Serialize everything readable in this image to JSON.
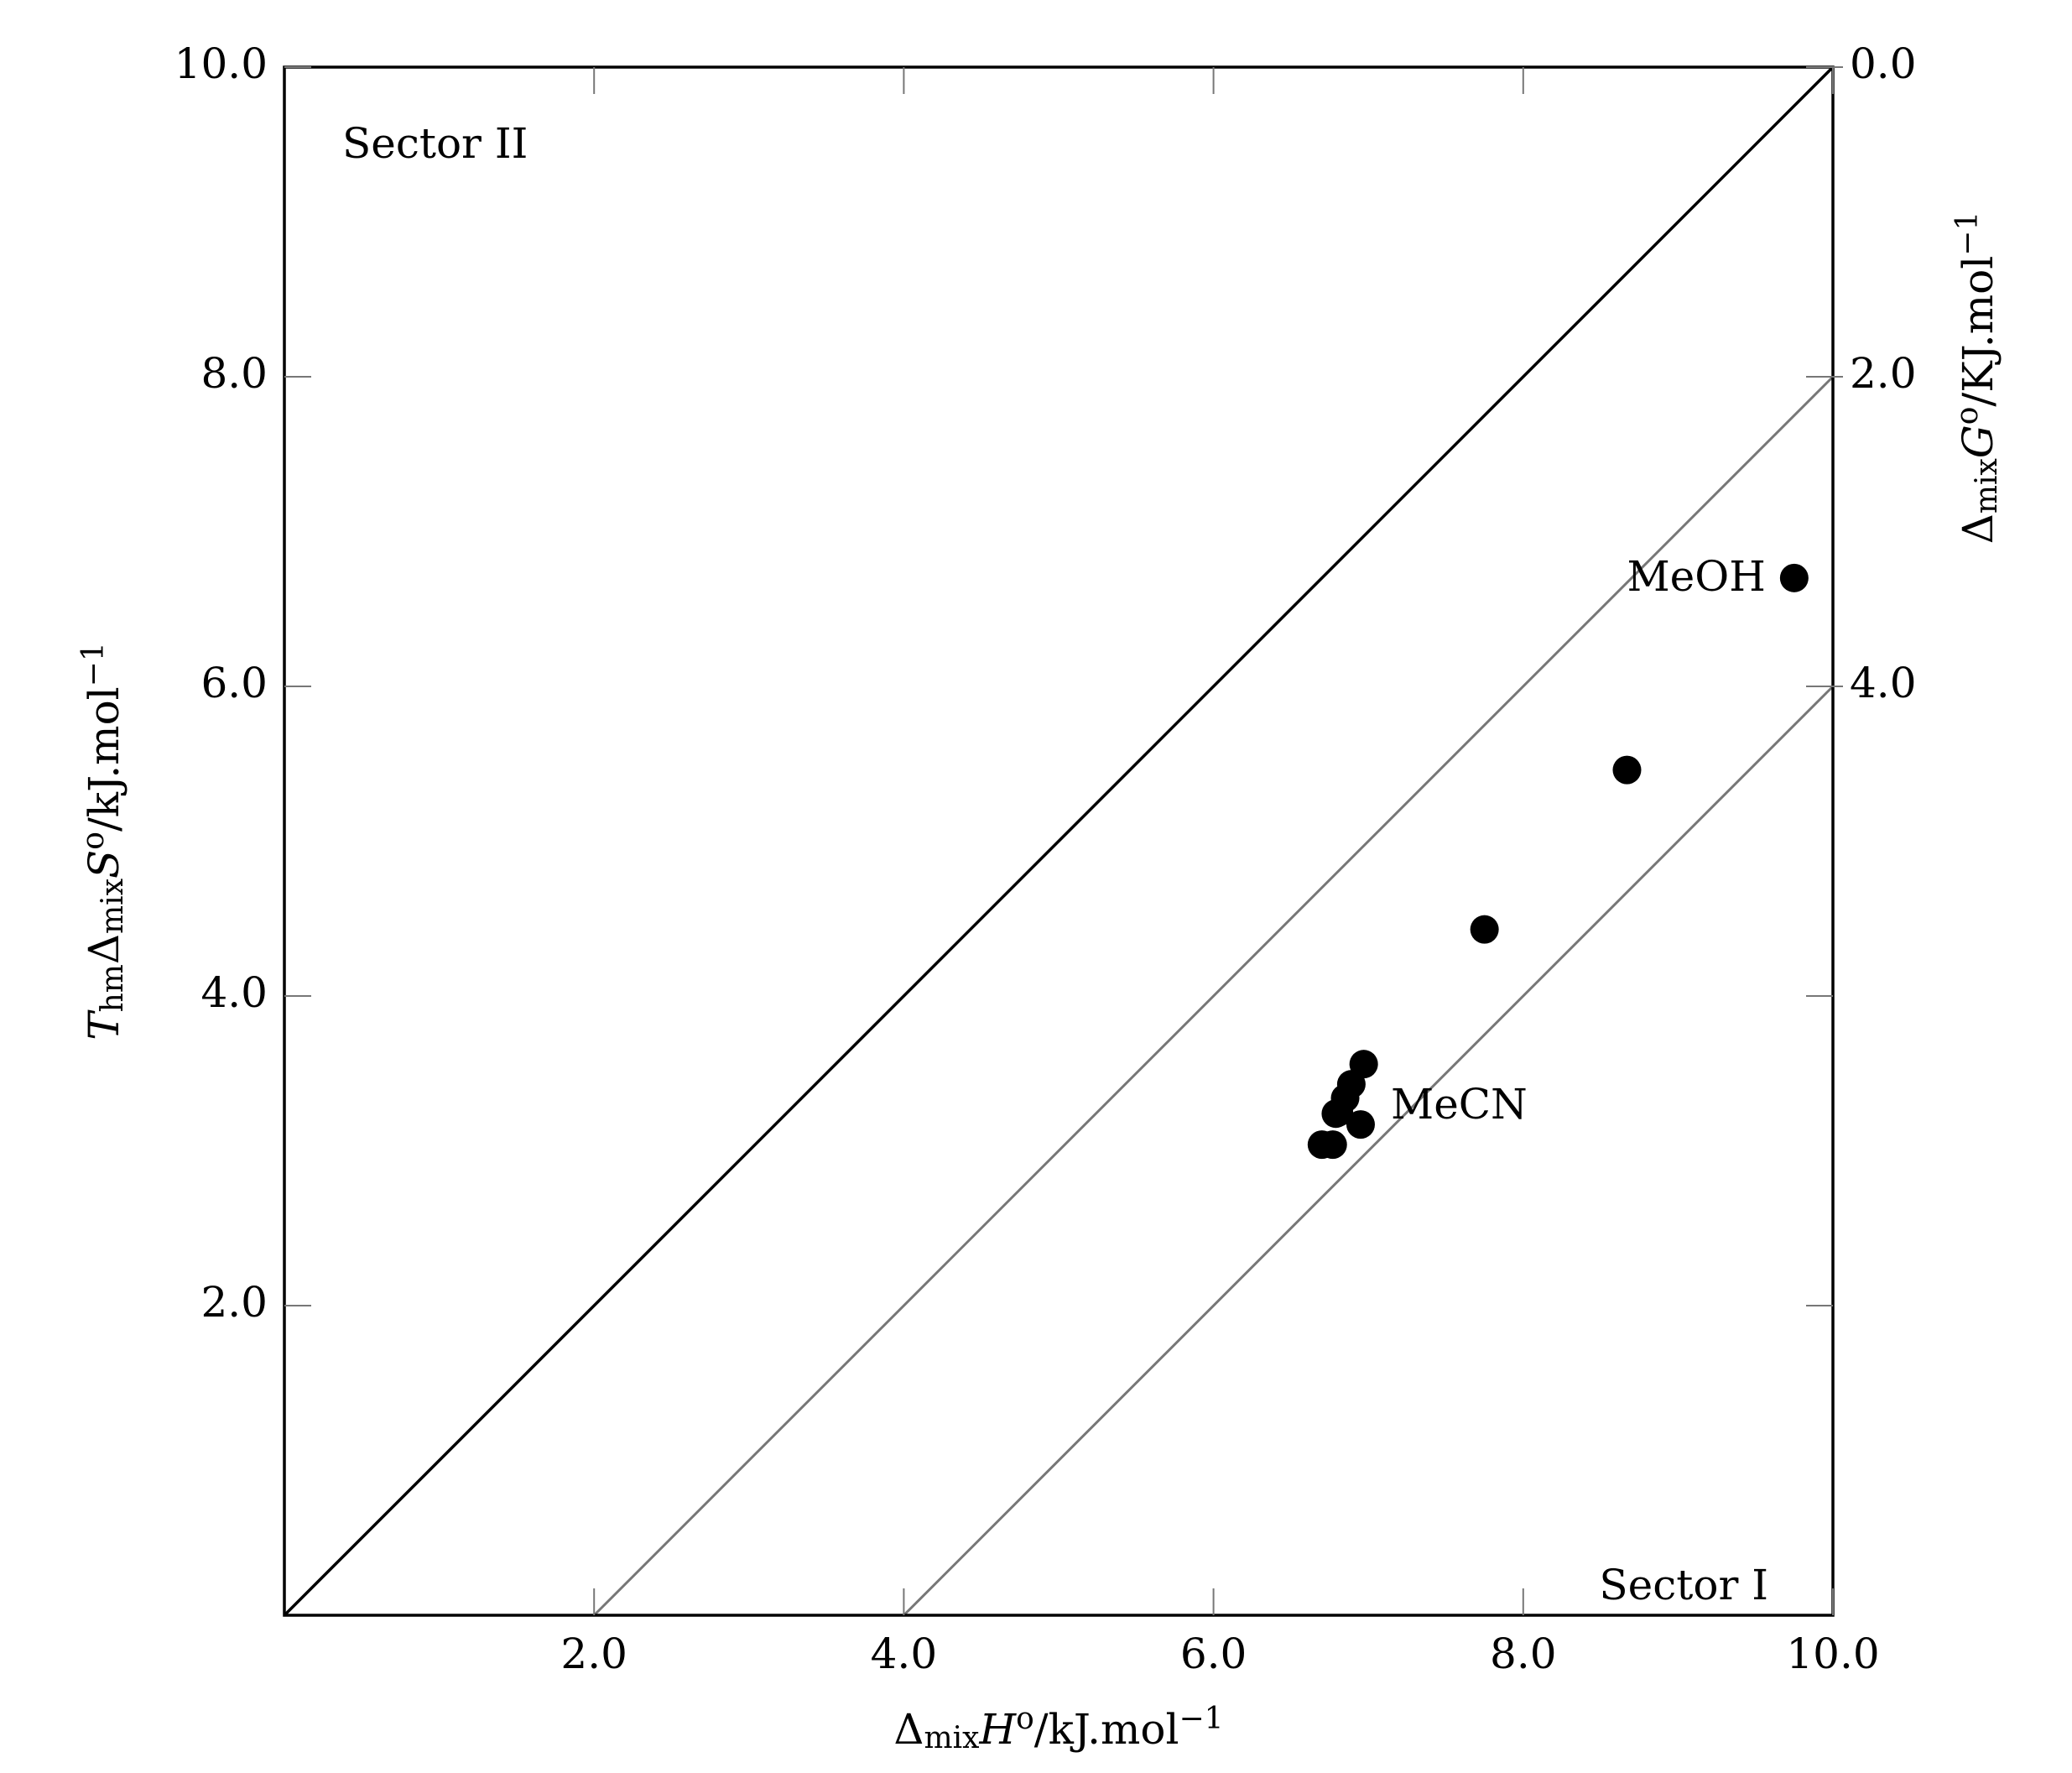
{
  "chart_data": {
    "type": "scatter",
    "x_label": {
      "base": "Δ",
      "sub": "mix",
      "main": "H",
      "sup": "o",
      "unit": "/kJ.mol",
      "unit_sup": "−1"
    },
    "y_label": {
      "pre": "T",
      "pre_sub": "hm",
      "base": "Δ",
      "sub": "mix",
      "main": "S",
      "sup": "o",
      "unit": "/kJ.mol",
      "unit_sup": "−1"
    },
    "y2_label": {
      "base": "Δ",
      "sub": "mix",
      "main": "G",
      "sup": "o",
      "unit": "/KJ.mol",
      "unit_sup": "−1"
    },
    "x": [
      9.75,
      8.67,
      7.75,
      6.97,
      6.89,
      6.85,
      6.81,
      6.79,
      6.95,
      6.7,
      6.77
    ],
    "values": [
      6.7,
      5.46,
      4.43,
      3.56,
      3.43,
      3.34,
      3.25,
      3.24,
      3.17,
      3.04,
      3.04
    ],
    "color": "#000000",
    "xlim": [
      0,
      10
    ],
    "ylim": [
      0,
      10
    ],
    "y2lim": [
      10,
      0
    ],
    "xticks": [
      {
        "value": 2,
        "label": "2.0"
      },
      {
        "value": 4,
        "label": "4.0"
      },
      {
        "value": 6,
        "label": "6.0"
      },
      {
        "value": 8,
        "label": "8.0"
      },
      {
        "value": 10,
        "label": "10.0"
      }
    ],
    "yticks": [
      {
        "value": 2,
        "label": "2.0"
      },
      {
        "value": 4,
        "label": "4.0"
      },
      {
        "value": 6,
        "label": "6.0"
      },
      {
        "value": 8,
        "label": "8.0"
      },
      {
        "value": 10,
        "label": "10.0"
      }
    ],
    "y2ticks": [
      {
        "value": 0,
        "label": "0.0"
      },
      {
        "value": 2,
        "label": "2.0"
      },
      {
        "value": 4,
        "label": "4.0"
      }
    ],
    "guide_colors": [
      "#000000",
      "#777777",
      "#777777"
    ],
    "annotations": [
      "Sector II",
      "Sector I",
      "MeOH",
      "MeCN"
    ]
  }
}
